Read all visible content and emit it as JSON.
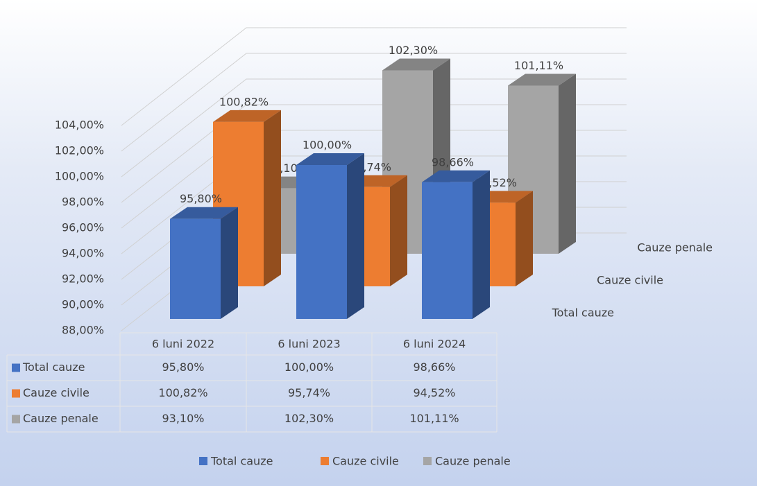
{
  "chart_data": {
    "type": "bar3d",
    "categories": [
      "6 luni 2022",
      "6 luni 2023",
      "6 luni 2024"
    ],
    "series": [
      {
        "name": "Total cauze",
        "color": "#4472c4",
        "values": [
          95.8,
          100.0,
          98.66
        ],
        "value_labels": [
          "95,80%",
          "100,00%",
          "98,66%"
        ]
      },
      {
        "name": "Cauze civile",
        "color": "#ed7d31",
        "values": [
          100.82,
          95.74,
          94.52
        ],
        "value_labels": [
          "100,82%",
          "95,74%",
          "94,52%"
        ]
      },
      {
        "name": "Cauze penale",
        "color": "#a5a5a5",
        "values": [
          93.1,
          102.3,
          101.11
        ],
        "value_labels": [
          "93,10%",
          "102,30%",
          "101,11%"
        ]
      }
    ],
    "ylim": [
      88,
      104
    ],
    "yticks": [
      {
        "value": 88,
        "label": "88,00%"
      },
      {
        "value": 90,
        "label": "90,00%"
      },
      {
        "value": 92,
        "label": "92,00%"
      },
      {
        "value": 94,
        "label": "94,00%"
      },
      {
        "value": 96,
        "label": "96,00%"
      },
      {
        "value": 98,
        "label": "98,00%"
      },
      {
        "value": 100,
        "label": "100,00%"
      },
      {
        "value": 102,
        "label": "102,00%"
      },
      {
        "value": 104,
        "label": "104,00%"
      }
    ],
    "grid": true,
    "legend": "bottom",
    "data_table": true
  }
}
